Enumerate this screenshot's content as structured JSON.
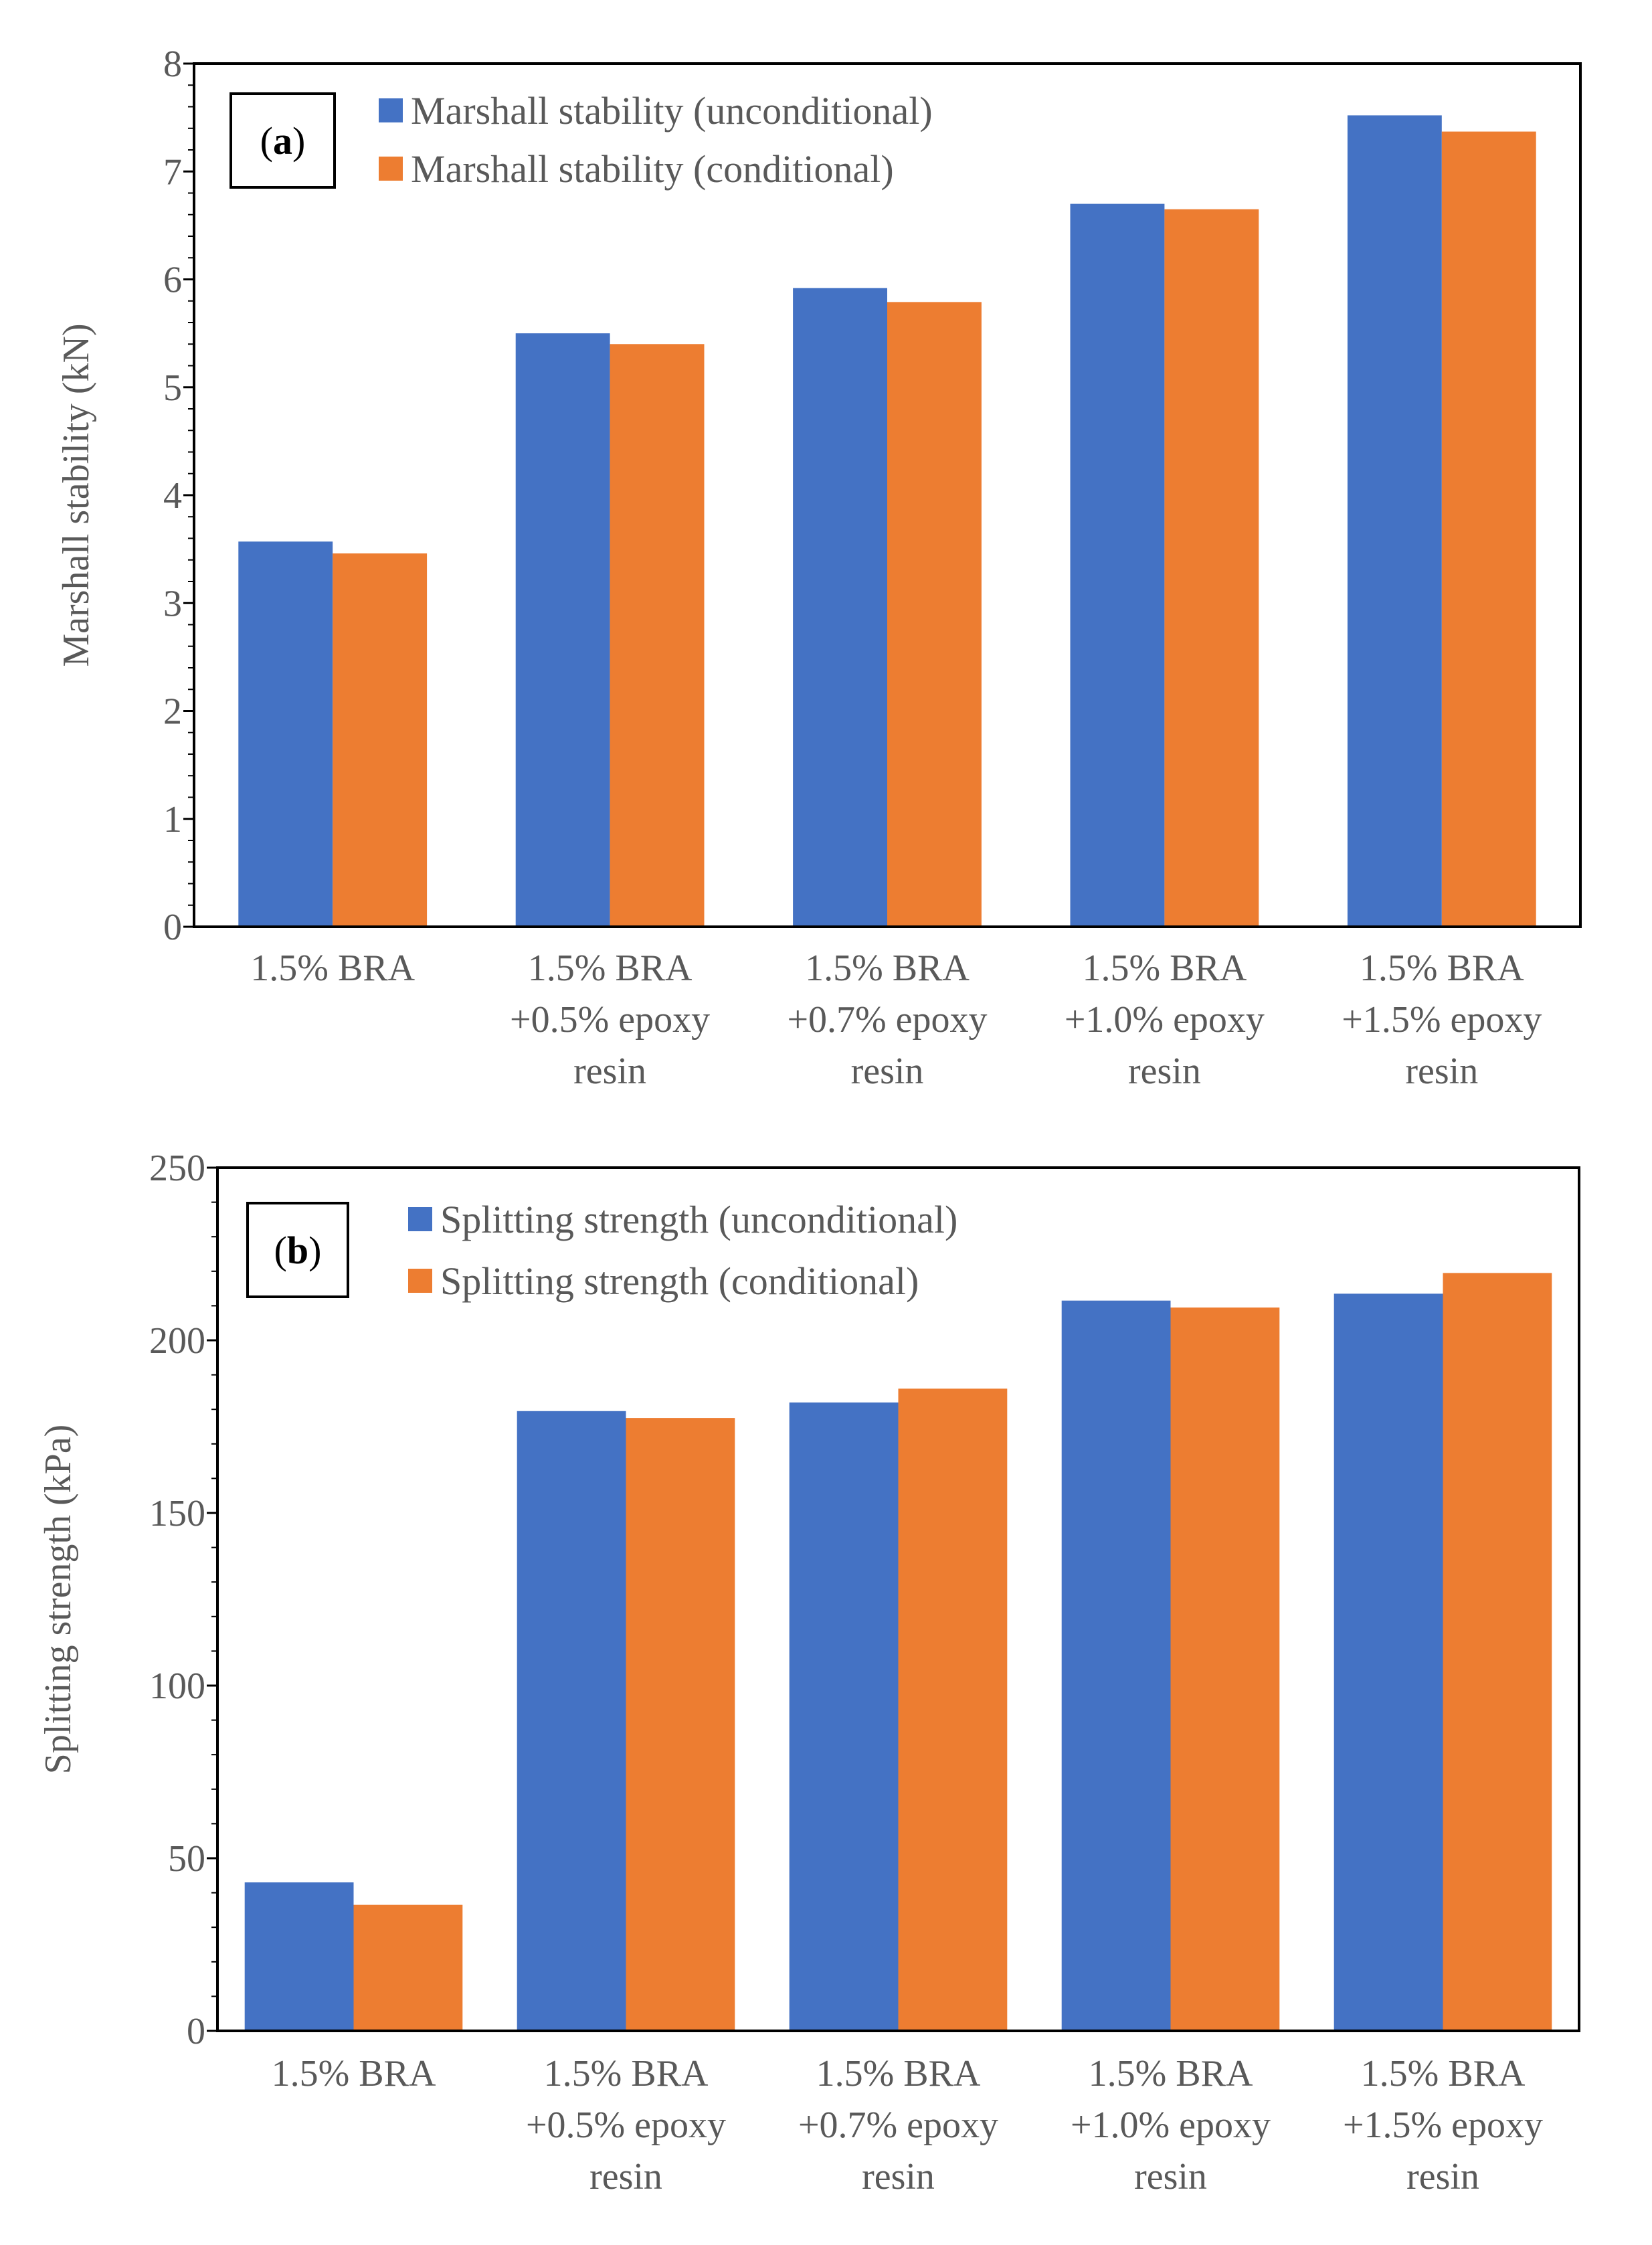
{
  "colors": {
    "unconditional": "#4472C4",
    "conditional": "#ED7D31",
    "axis": "#000000",
    "text": "#595959"
  },
  "chart_data": [
    {
      "type": "bar",
      "panel": "(a)",
      "panel_letter": "a",
      "ylabel": "Marshall stability (kN)",
      "ylim": [
        0,
        8
      ],
      "yticks": [
        0,
        1,
        2,
        3,
        4,
        5,
        6,
        7,
        8
      ],
      "minor_per_major": 5,
      "categories": [
        [
          "1.5% BRA"
        ],
        [
          "1.5% BRA",
          "+0.5% epoxy",
          "resin"
        ],
        [
          "1.5% BRA",
          "+0.7% epoxy",
          "resin"
        ],
        [
          "1.5% BRA",
          "+1.0% epoxy",
          "resin"
        ],
        [
          "1.5% BRA",
          "+1.5% epoxy",
          "resin"
        ]
      ],
      "series": [
        {
          "name": "Marshall stability (unconditional)",
          "color": "#4472C4",
          "values": [
            3.57,
            5.5,
            5.92,
            6.7,
            7.52
          ]
        },
        {
          "name": "Marshall stability (conditional)",
          "color": "#ED7D31",
          "values": [
            3.46,
            5.4,
            5.79,
            6.65,
            7.37
          ]
        }
      ]
    },
    {
      "type": "bar",
      "panel": "(b)",
      "panel_letter": "b",
      "ylabel": "Splitting strength (kPa)",
      "ylim": [
        0,
        250
      ],
      "yticks": [
        0,
        50,
        100,
        150,
        200,
        250
      ],
      "minor_per_major": 5,
      "categories": [
        [
          "1.5% BRA"
        ],
        [
          "1.5% BRA",
          "+0.5% epoxy",
          "resin"
        ],
        [
          "1.5% BRA",
          "+0.7% epoxy",
          "resin"
        ],
        [
          "1.5% BRA",
          "+1.0% epoxy",
          "resin"
        ],
        [
          "1.5% BRA",
          "+1.5% epoxy",
          "resin"
        ]
      ],
      "series": [
        {
          "name": "Splitting strength (unconditional)",
          "color": "#4472C4",
          "values": [
            43,
            179.5,
            182,
            211.5,
            213.5
          ]
        },
        {
          "name": "Splitting strength (conditional)",
          "color": "#ED7D31",
          "values": [
            36.5,
            177.5,
            186,
            209.5,
            219.5
          ]
        }
      ]
    }
  ]
}
